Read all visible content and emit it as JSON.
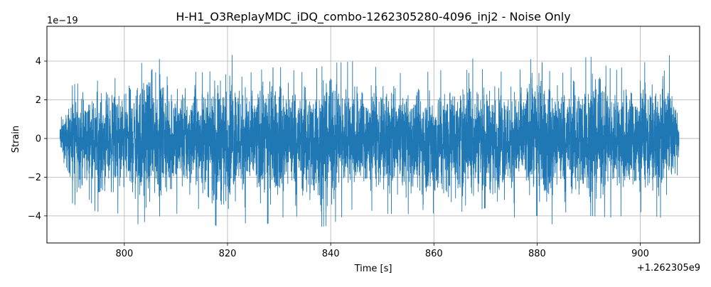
{
  "chart_data": {
    "type": "line",
    "title": "H-H1_O3ReplayMDC_iDQ_combo-1262305280-4096_inj2 - Noise Only",
    "xlabel": "Time [s]",
    "ylabel": "Strain",
    "x_offset_label": "+1.262305e9",
    "y_scale_label": "1e−19",
    "xlim": [
      785.0,
      911.5
    ],
    "ylim": [
      -5.4,
      5.8
    ],
    "xticks": [
      800,
      820,
      840,
      860,
      880,
      900
    ],
    "xtick_labels": [
      "800",
      "820",
      "840",
      "860",
      "880",
      "900"
    ],
    "yticks": [
      -4,
      -2,
      0,
      2,
      4
    ],
    "ytick_labels": [
      "−4",
      "−2",
      "0",
      "2",
      "4"
    ],
    "grid": true,
    "series": [
      {
        "color": "#1f77b4",
        "x_range": [
          787.5,
          907.5
        ],
        "envelope_x": [
          787.5,
          790,
          795,
          800,
          803,
          805,
          810,
          815,
          818,
          822,
          825,
          830,
          835,
          837,
          840,
          845,
          850,
          855,
          860,
          865,
          866,
          870,
          875,
          880,
          882,
          885,
          890,
          895,
          900,
          904,
          905,
          907.5
        ],
        "envelope_upper": [
          0.9,
          2.8,
          3.0,
          3.2,
          3.8,
          4.4,
          3.6,
          3.4,
          4.1,
          4.4,
          3.5,
          3.7,
          3.4,
          3.6,
          3.9,
          4.0,
          3.6,
          3.3,
          3.5,
          3.6,
          4.6,
          3.4,
          3.5,
          4.3,
          3.5,
          3.4,
          4.3,
          3.5,
          4.1,
          3.4,
          5.3,
          1.4
        ],
        "envelope_lower": [
          -0.9,
          -3.4,
          -3.8,
          -3.9,
          -4.5,
          -4.1,
          -3.9,
          -3.6,
          -4.6,
          -4.0,
          -4.8,
          -4.1,
          -4.0,
          -4.6,
          -4.5,
          -3.5,
          -3.9,
          -3.9,
          -4.7,
          -3.7,
          -3.9,
          -3.6,
          -4.1,
          -4.0,
          -4.7,
          -3.8,
          -4.0,
          -4.1,
          -3.8,
          -4.1,
          -4.0,
          -1.6
        ]
      }
    ]
  }
}
